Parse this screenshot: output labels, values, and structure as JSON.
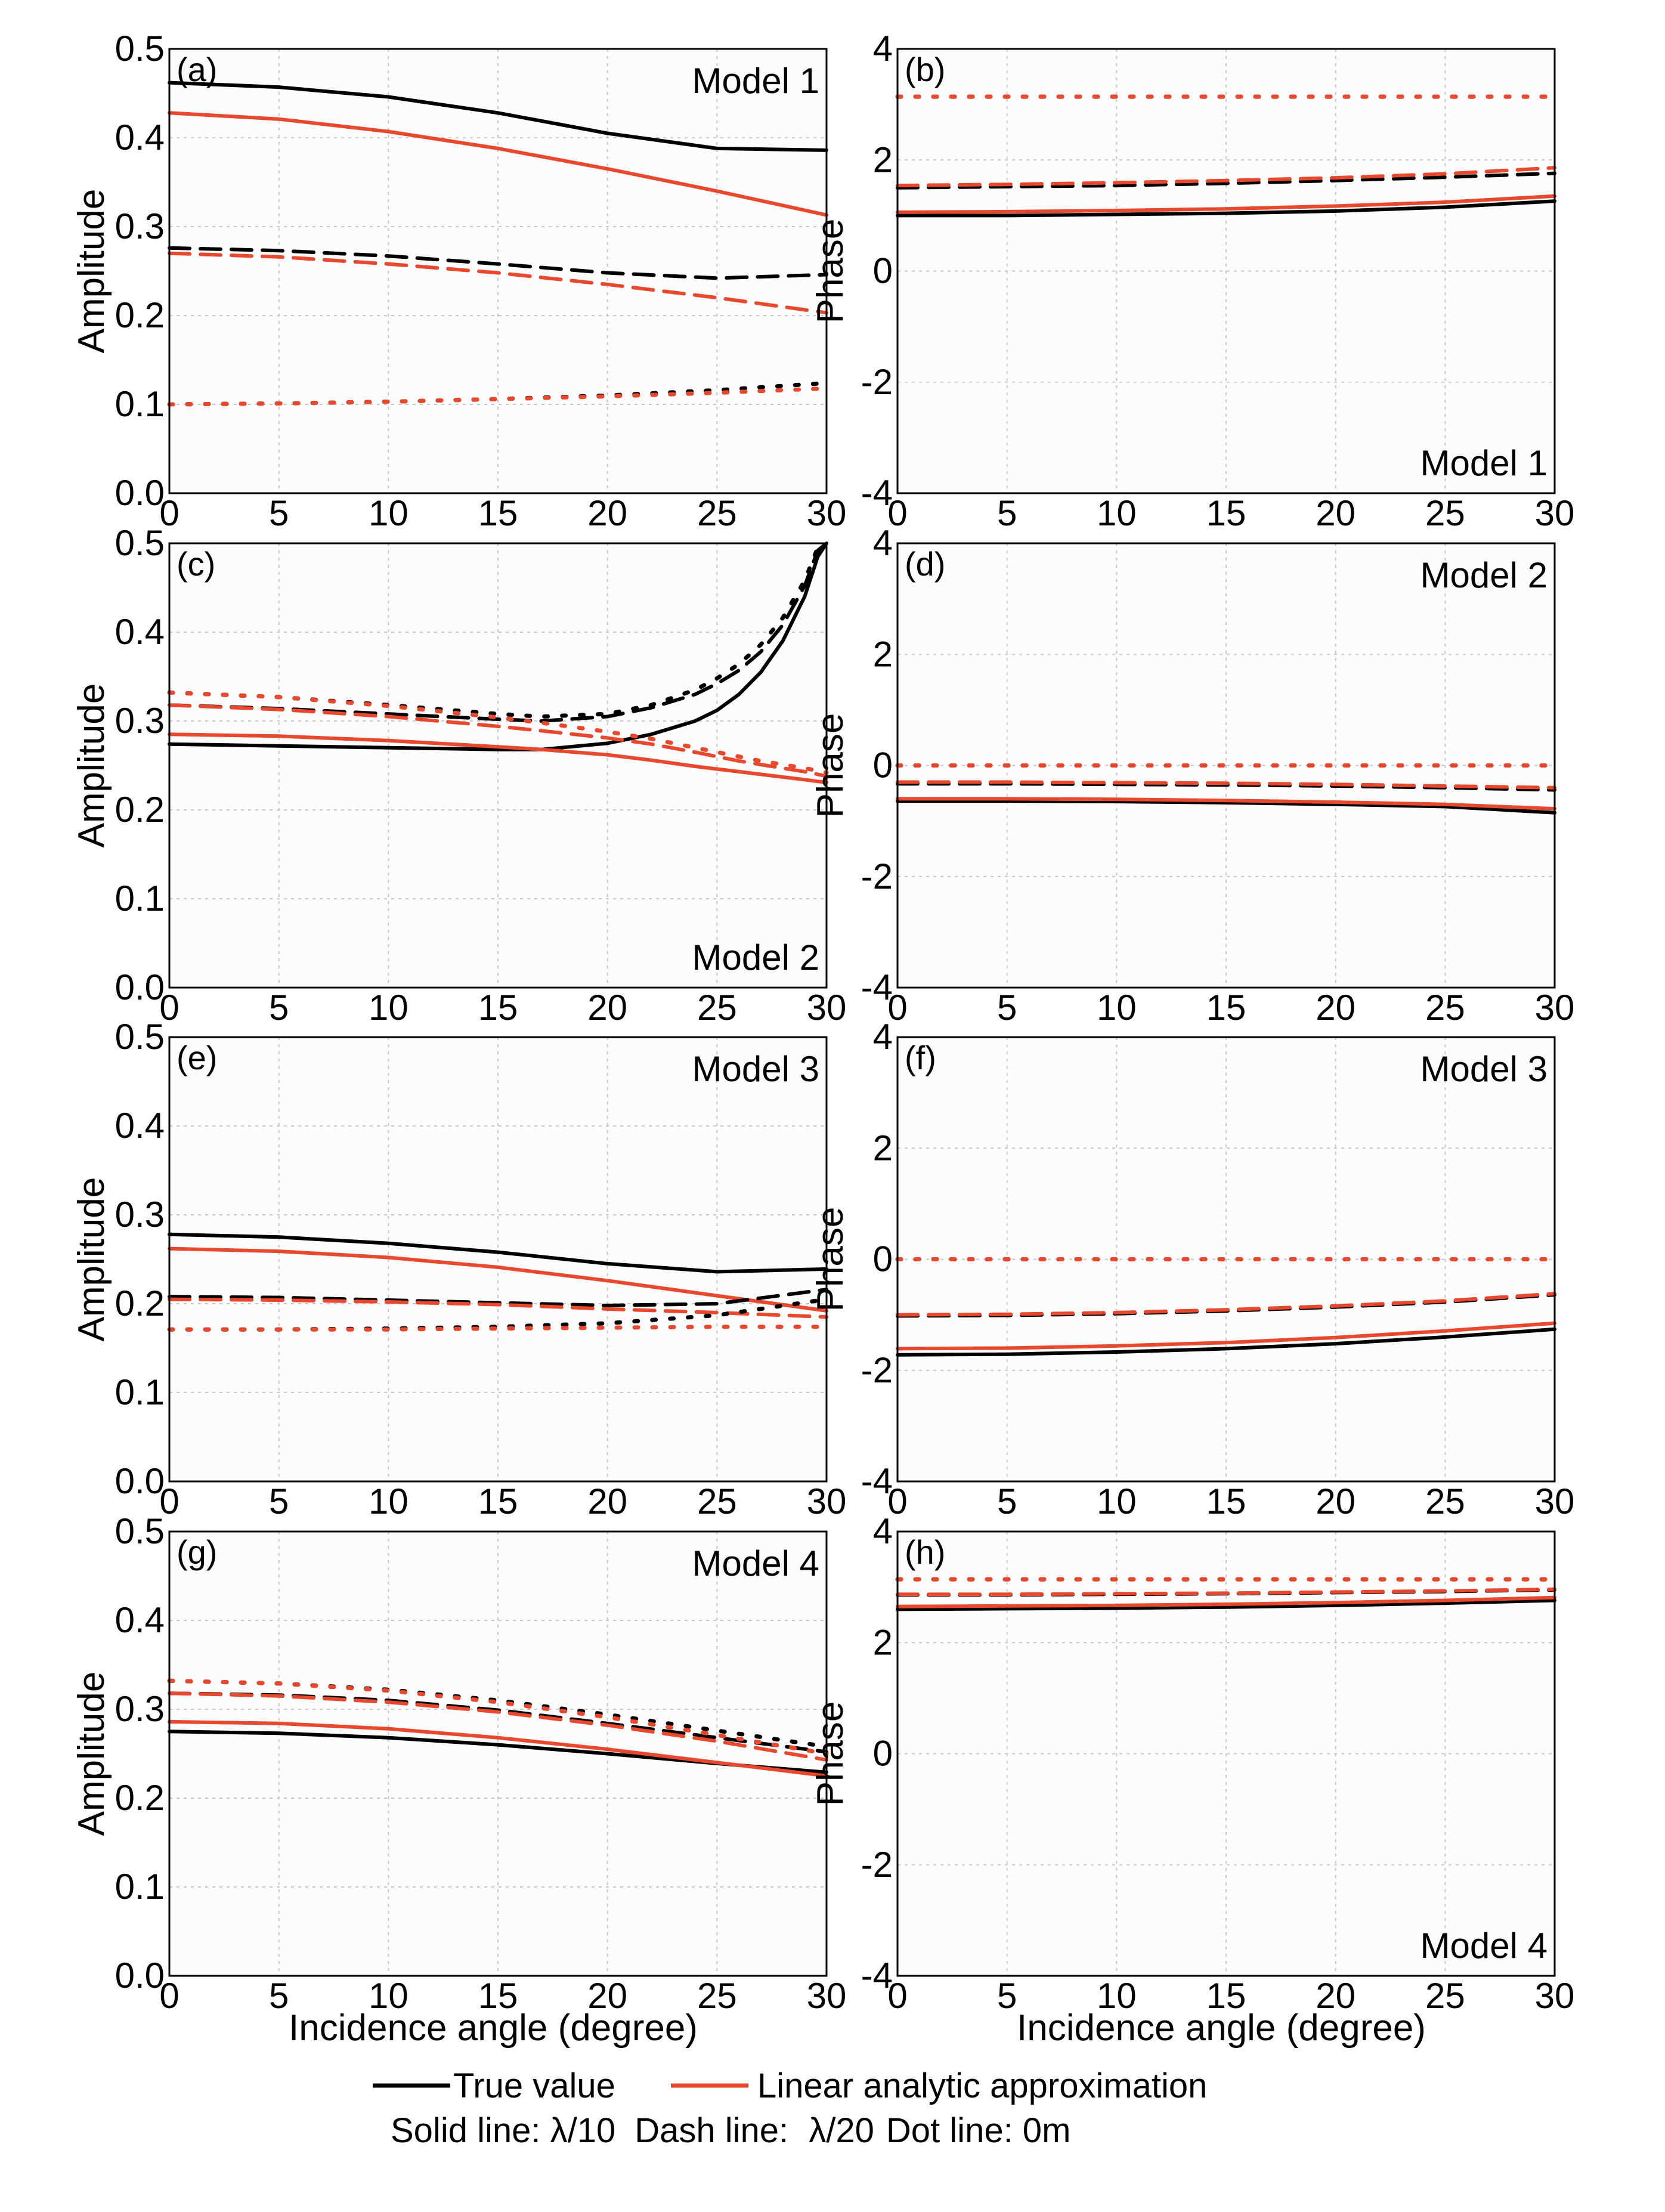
{
  "figure": {
    "legend": {
      "true_value": "True value",
      "linear": "Linear analytic approximation",
      "note_prefix": "Solid line: ",
      "note_solid": "λ/10",
      "note_dash_prefix": "Dash line: ",
      "note_dash": "λ/20",
      "note_dot": "Dot line: 0m"
    },
    "colors": {
      "true": "#000000",
      "approx": "#e8482e",
      "grid": "#c8c8c8",
      "panel_bg": "#fcfcfc"
    }
  },
  "chart_data": [
    {
      "id": "a",
      "label": "(a)",
      "model": "Model 1",
      "type": "line",
      "ylabel": "Amplitude",
      "xlabel": "",
      "xlim": [
        0,
        30
      ],
      "ylim": [
        0.0,
        0.5
      ],
      "xticks": [
        "0",
        "5",
        "10",
        "15",
        "20",
        "25",
        "30"
      ],
      "yticks": [
        "0.0",
        "0.1",
        "0.2",
        "0.3",
        "0.4",
        "0.5"
      ],
      "x": [
        0,
        5,
        10,
        15,
        20,
        25,
        30
      ],
      "series": [
        {
          "name": "True λ/10",
          "color": "true",
          "style": "solid",
          "values": [
            0.462,
            0.457,
            0.446,
            0.428,
            0.405,
            0.388,
            0.386
          ]
        },
        {
          "name": "Approx λ/10",
          "color": "approx",
          "style": "solid",
          "values": [
            0.428,
            0.421,
            0.407,
            0.388,
            0.365,
            0.34,
            0.313
          ]
        },
        {
          "name": "True λ/20",
          "color": "true",
          "style": "dash",
          "values": [
            0.276,
            0.273,
            0.267,
            0.258,
            0.248,
            0.242,
            0.246
          ]
        },
        {
          "name": "Approx λ/20",
          "color": "approx",
          "style": "dash",
          "values": [
            0.27,
            0.266,
            0.258,
            0.248,
            0.235,
            0.22,
            0.203
          ]
        },
        {
          "name": "True 0m",
          "color": "true",
          "style": "dot",
          "values": [
            0.1,
            0.101,
            0.103,
            0.106,
            0.11,
            0.116,
            0.124
          ]
        },
        {
          "name": "Approx 0m",
          "color": "approx",
          "style": "dot",
          "values": [
            0.1,
            0.101,
            0.103,
            0.106,
            0.109,
            0.113,
            0.118
          ]
        }
      ]
    },
    {
      "id": "b",
      "label": "(b)",
      "model": "Model 1",
      "type": "line",
      "ylabel": "Phase",
      "xlabel": "",
      "xlim": [
        0,
        30
      ],
      "ylim": [
        -4,
        4
      ],
      "xticks": [
        "0",
        "5",
        "10",
        "15",
        "20",
        "25",
        "30"
      ],
      "yticks": [
        "-4",
        "-2",
        "0",
        "2",
        "4"
      ],
      "x": [
        0,
        5,
        10,
        15,
        20,
        25,
        30
      ],
      "series": [
        {
          "name": "True λ/10",
          "color": "true",
          "style": "solid",
          "values": [
            1.0,
            1.0,
            1.02,
            1.04,
            1.08,
            1.15,
            1.26
          ]
        },
        {
          "name": "Approx λ/10",
          "color": "approx",
          "style": "solid",
          "values": [
            1.06,
            1.07,
            1.09,
            1.12,
            1.17,
            1.24,
            1.35
          ]
        },
        {
          "name": "True λ/20",
          "color": "true",
          "style": "dash",
          "values": [
            1.5,
            1.52,
            1.54,
            1.58,
            1.63,
            1.69,
            1.76
          ]
        },
        {
          "name": "Approx λ/20",
          "color": "approx",
          "style": "dash",
          "values": [
            1.54,
            1.56,
            1.59,
            1.63,
            1.68,
            1.75,
            1.86
          ]
        },
        {
          "name": "True 0m",
          "color": "true",
          "style": "dot",
          "values": [
            3.14,
            3.14,
            3.14,
            3.14,
            3.14,
            3.14,
            3.14
          ]
        },
        {
          "name": "Approx 0m",
          "color": "approx",
          "style": "dot",
          "values": [
            3.14,
            3.14,
            3.14,
            3.14,
            3.14,
            3.14,
            3.14
          ]
        }
      ]
    },
    {
      "id": "c",
      "label": "(c)",
      "model": "Model 2",
      "type": "line",
      "ylabel": "Amplitude",
      "xlabel": "",
      "xlim": [
        0,
        30
      ],
      "ylim": [
        0.0,
        0.5
      ],
      "xticks": [
        "0",
        "5",
        "10",
        "15",
        "20",
        "25",
        "30"
      ],
      "yticks": [
        "0.0",
        "0.1",
        "0.2",
        "0.3",
        "0.4",
        "0.5"
      ],
      "x": [
        0,
        5,
        10,
        15,
        17,
        20,
        22,
        24,
        25,
        26,
        27,
        28,
        29,
        29.6,
        30
      ],
      "series": [
        {
          "name": "True λ/10",
          "color": "true",
          "style": "solid",
          "values": [
            0.274,
            0.272,
            0.27,
            0.268,
            0.268,
            0.275,
            0.285,
            0.3,
            0.312,
            0.33,
            0.355,
            0.39,
            0.44,
            0.485,
            0.5
          ]
        },
        {
          "name": "True λ/20",
          "color": "true",
          "style": "dash",
          "values": [
            0.318,
            0.314,
            0.308,
            0.302,
            0.3,
            0.305,
            0.315,
            0.33,
            0.342,
            0.357,
            0.378,
            0.408,
            0.452,
            0.492,
            0.5
          ]
        },
        {
          "name": "True 0m",
          "color": "true",
          "style": "dot",
          "values": [
            0.332,
            0.327,
            0.318,
            0.308,
            0.305,
            0.308,
            0.318,
            0.335,
            0.348,
            0.364,
            0.386,
            0.416,
            0.458,
            0.495,
            0.5
          ]
        },
        {
          "name": "Approx λ/10",
          "color": "approx",
          "style": "solid",
          "values": [
            0.285,
            0.283,
            0.278,
            0.271,
            0.268,
            0.262,
            0.256,
            0.249,
            0.246,
            0.243,
            0.24,
            0.237,
            0.234,
            0.232,
            0.231
          ]
        },
        {
          "name": "Approx λ/20",
          "color": "approx",
          "style": "dash",
          "values": [
            0.318,
            0.313,
            0.305,
            0.294,
            0.289,
            0.281,
            0.274,
            0.265,
            0.26,
            0.255,
            0.251,
            0.247,
            0.243,
            0.24,
            0.238
          ]
        },
        {
          "name": "Approx 0m",
          "color": "approx",
          "style": "dot",
          "values": [
            0.332,
            0.327,
            0.317,
            0.304,
            0.298,
            0.288,
            0.28,
            0.27,
            0.265,
            0.26,
            0.255,
            0.251,
            0.247,
            0.244,
            0.242
          ]
        }
      ]
    },
    {
      "id": "d",
      "label": "(d)",
      "model": "Model 2",
      "type": "line",
      "ylabel": "Phase",
      "xlabel": "",
      "xlim": [
        0,
        30
      ],
      "ylim": [
        -4,
        4
      ],
      "xticks": [
        "0",
        "5",
        "10",
        "15",
        "20",
        "25",
        "30"
      ],
      "yticks": [
        "-4",
        "-2",
        "0",
        "2",
        "4"
      ],
      "x": [
        0,
        5,
        10,
        15,
        20,
        25,
        30
      ],
      "series": [
        {
          "name": "True λ/10",
          "color": "true",
          "style": "solid",
          "values": [
            -0.64,
            -0.64,
            -0.65,
            -0.67,
            -0.7,
            -0.74,
            -0.85
          ]
        },
        {
          "name": "Approx λ/10",
          "color": "approx",
          "style": "solid",
          "values": [
            -0.6,
            -0.6,
            -0.61,
            -0.63,
            -0.66,
            -0.7,
            -0.78
          ]
        },
        {
          "name": "True λ/20",
          "color": "true",
          "style": "dash",
          "values": [
            -0.33,
            -0.33,
            -0.34,
            -0.35,
            -0.37,
            -0.4,
            -0.44
          ]
        },
        {
          "name": "Approx λ/20",
          "color": "approx",
          "style": "dash",
          "values": [
            -0.3,
            -0.3,
            -0.31,
            -0.32,
            -0.34,
            -0.37,
            -0.4
          ]
        },
        {
          "name": "True 0m",
          "color": "true",
          "style": "dot",
          "values": [
            0.0,
            0.0,
            0.0,
            0.0,
            0.0,
            0.0,
            0.0
          ]
        },
        {
          "name": "Approx 0m",
          "color": "approx",
          "style": "dot",
          "values": [
            0.0,
            0.0,
            0.0,
            0.0,
            0.0,
            0.0,
            0.0
          ]
        }
      ]
    },
    {
      "id": "e",
      "label": "(e)",
      "model": "Model 3",
      "type": "line",
      "ylabel": "Amplitude",
      "xlabel": "",
      "xlim": [
        0,
        30
      ],
      "ylim": [
        0.0,
        0.5
      ],
      "xticks": [
        "0",
        "5",
        "10",
        "15",
        "20",
        "25",
        "30"
      ],
      "yticks": [
        "0.0",
        "0.1",
        "0.2",
        "0.3",
        "0.4",
        "0.5"
      ],
      "x": [
        0,
        5,
        10,
        15,
        20,
        25,
        30
      ],
      "series": [
        {
          "name": "True λ/10",
          "color": "true",
          "style": "solid",
          "values": [
            0.278,
            0.275,
            0.268,
            0.258,
            0.245,
            0.236,
            0.239
          ]
        },
        {
          "name": "Approx λ/10",
          "color": "approx",
          "style": "solid",
          "values": [
            0.262,
            0.259,
            0.252,
            0.241,
            0.226,
            0.209,
            0.192
          ]
        },
        {
          "name": "True λ/20",
          "color": "true",
          "style": "dash",
          "values": [
            0.208,
            0.207,
            0.204,
            0.201,
            0.198,
            0.2,
            0.216
          ]
        },
        {
          "name": "Approx λ/20",
          "color": "approx",
          "style": "dash",
          "values": [
            0.205,
            0.204,
            0.202,
            0.199,
            0.194,
            0.19,
            0.185
          ]
        },
        {
          "name": "True 0m",
          "color": "true",
          "style": "dot",
          "values": [
            0.171,
            0.171,
            0.172,
            0.174,
            0.178,
            0.187,
            0.205
          ]
        },
        {
          "name": "Approx 0m",
          "color": "approx",
          "style": "dot",
          "values": [
            0.171,
            0.171,
            0.171,
            0.172,
            0.173,
            0.174,
            0.174
          ]
        }
      ]
    },
    {
      "id": "f",
      "label": "(f)",
      "model": "Model 3",
      "type": "line",
      "ylabel": "Phase",
      "xlabel": "",
      "xlim": [
        0,
        30
      ],
      "ylim": [
        -4,
        4
      ],
      "xticks": [
        "0",
        "5",
        "10",
        "15",
        "20",
        "25",
        "30"
      ],
      "yticks": [
        "-4",
        "-2",
        "0",
        "2",
        "4"
      ],
      "x": [
        0,
        5,
        10,
        15,
        20,
        25,
        30
      ],
      "series": [
        {
          "name": "True λ/10",
          "color": "true",
          "style": "solid",
          "values": [
            -1.72,
            -1.71,
            -1.67,
            -1.61,
            -1.52,
            -1.4,
            -1.26
          ]
        },
        {
          "name": "Approx λ/10",
          "color": "approx",
          "style": "solid",
          "values": [
            -1.61,
            -1.6,
            -1.56,
            -1.5,
            -1.41,
            -1.29,
            -1.15
          ]
        },
        {
          "name": "True λ/20",
          "color": "true",
          "style": "dash",
          "values": [
            -1.02,
            -1.01,
            -0.98,
            -0.93,
            -0.86,
            -0.77,
            -0.64
          ]
        },
        {
          "name": "Approx λ/20",
          "color": "approx",
          "style": "dash",
          "values": [
            -1.0,
            -0.99,
            -0.96,
            -0.91,
            -0.84,
            -0.75,
            -0.62
          ]
        },
        {
          "name": "True 0m",
          "color": "true",
          "style": "dot",
          "values": [
            0.0,
            0.0,
            0.0,
            0.0,
            0.0,
            0.0,
            0.0
          ]
        },
        {
          "name": "Approx 0m",
          "color": "approx",
          "style": "dot",
          "values": [
            0.0,
            0.0,
            0.0,
            0.0,
            0.0,
            0.0,
            0.0
          ]
        }
      ]
    },
    {
      "id": "g",
      "label": "(g)",
      "model": "Model 4",
      "type": "line",
      "ylabel": "Amplitude",
      "xlabel": "Incidence angle (degree)",
      "xlim": [
        0,
        30
      ],
      "ylim": [
        0.0,
        0.5
      ],
      "xticks": [
        "0",
        "5",
        "10",
        "15",
        "20",
        "25",
        "30"
      ],
      "yticks": [
        "0.0",
        "0.1",
        "0.2",
        "0.3",
        "0.4",
        "0.5"
      ],
      "x": [
        0,
        5,
        10,
        15,
        20,
        25,
        30
      ],
      "series": [
        {
          "name": "True λ/10",
          "color": "true",
          "style": "solid",
          "values": [
            0.275,
            0.273,
            0.268,
            0.26,
            0.25,
            0.239,
            0.229
          ]
        },
        {
          "name": "Approx λ/10",
          "color": "approx",
          "style": "solid",
          "values": [
            0.286,
            0.284,
            0.278,
            0.268,
            0.255,
            0.24,
            0.225
          ]
        },
        {
          "name": "True λ/20",
          "color": "true",
          "style": "dash",
          "values": [
            0.318,
            0.316,
            0.31,
            0.299,
            0.284,
            0.268,
            0.252
          ]
        },
        {
          "name": "Approx λ/20",
          "color": "approx",
          "style": "dash",
          "values": [
            0.318,
            0.315,
            0.308,
            0.297,
            0.282,
            0.264,
            0.243
          ]
        },
        {
          "name": "True 0m",
          "color": "true",
          "style": "dot",
          "values": [
            0.332,
            0.329,
            0.322,
            0.31,
            0.294,
            0.276,
            0.258
          ]
        },
        {
          "name": "Approx 0m",
          "color": "approx",
          "style": "dot",
          "values": [
            0.332,
            0.329,
            0.321,
            0.308,
            0.291,
            0.271,
            0.25
          ]
        }
      ]
    },
    {
      "id": "h",
      "label": "(h)",
      "model": "Model 4",
      "type": "line",
      "ylabel": "Phase",
      "xlabel": "Incidence angle (degree)",
      "xlim": [
        0,
        30
      ],
      "ylim": [
        -4,
        4
      ],
      "xticks": [
        "0",
        "5",
        "10",
        "15",
        "20",
        "25",
        "30"
      ],
      "yticks": [
        "-4",
        "-2",
        "0",
        "2",
        "4"
      ],
      "x": [
        0,
        5,
        10,
        15,
        20,
        25,
        30
      ],
      "series": [
        {
          "name": "True λ/10",
          "color": "true",
          "style": "solid",
          "values": [
            2.6,
            2.61,
            2.62,
            2.64,
            2.67,
            2.71,
            2.76
          ]
        },
        {
          "name": "Approx λ/10",
          "color": "approx",
          "style": "solid",
          "values": [
            2.65,
            2.66,
            2.67,
            2.69,
            2.72,
            2.76,
            2.81
          ]
        },
        {
          "name": "True λ/20",
          "color": "true",
          "style": "dash",
          "values": [
            2.86,
            2.86,
            2.87,
            2.88,
            2.9,
            2.92,
            2.95
          ]
        },
        {
          "name": "Approx λ/20",
          "color": "approx",
          "style": "dash",
          "values": [
            2.87,
            2.87,
            2.88,
            2.89,
            2.91,
            2.93,
            2.96
          ]
        },
        {
          "name": "True 0m",
          "color": "true",
          "style": "dot",
          "values": [
            3.14,
            3.14,
            3.14,
            3.14,
            3.14,
            3.14,
            3.14
          ]
        },
        {
          "name": "Approx 0m",
          "color": "approx",
          "style": "dot",
          "values": [
            3.14,
            3.14,
            3.14,
            3.14,
            3.14,
            3.14,
            3.14
          ]
        }
      ]
    }
  ]
}
